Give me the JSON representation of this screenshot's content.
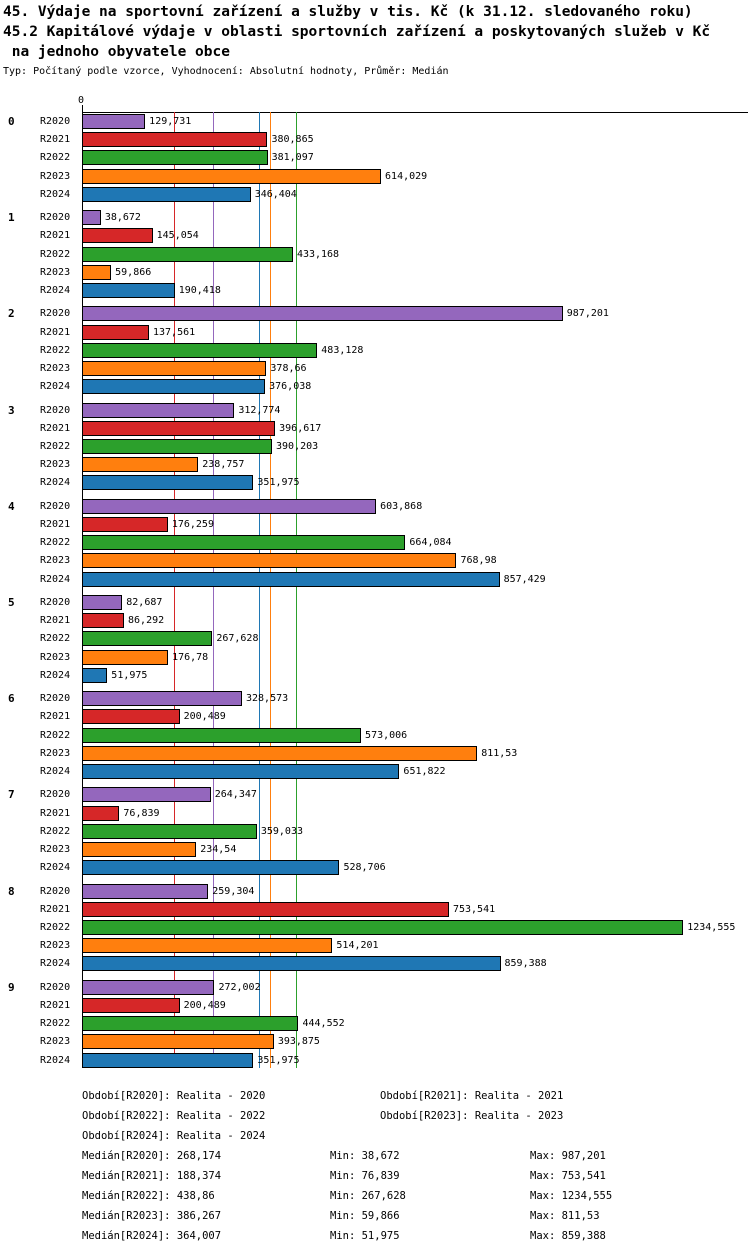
{
  "header": {
    "title_line1": "45. Výdaje na sportovní zařízení a služby v tis. Kč (k 31.12. sledovaného roku)",
    "title_line2": "45.2 Kapitálové výdaje v oblasti sportovních zařízení a poskytovaných služeb v Kč",
    "title_line3": " na jednoho obyvatele obce",
    "subtitle": "Typ: Počítaný podle vzorce, Vyhodnocení: Absolutní hodnoty, Průměr: Medián"
  },
  "chart_data": {
    "type": "bar",
    "orientation": "horizontal",
    "title": "45. Výdaje na sportovní zařízení a služby v tis. Kč (k 31.12. sledovaného roku)",
    "axis_zero_label": "0",
    "xlim": [
      0,
      1270
    ],
    "groups": [
      "0",
      "1",
      "2",
      "3",
      "4",
      "5",
      "6",
      "7",
      "8",
      "9"
    ],
    "series_labels": [
      "R2020",
      "R2021",
      "R2022",
      "R2023",
      "R2024"
    ],
    "series_colors": [
      "#9467bd",
      "#d62728",
      "#2ca02c",
      "#ff7f0e",
      "#1f77b4"
    ],
    "values": [
      [
        129.731,
        380.865,
        381.097,
        614.029,
        346.404
      ],
      [
        38.672,
        145.054,
        433.168,
        59.866,
        190.418
      ],
      [
        987.201,
        137.561,
        483.128,
        378.66,
        376.038
      ],
      [
        312.774,
        396.617,
        390.203,
        238.757,
        351.975
      ],
      [
        603.868,
        176.259,
        664.084,
        768.98,
        857.429
      ],
      [
        82.687,
        86.292,
        267.628,
        176.78,
        51.975
      ],
      [
        328.573,
        200.489,
        573.006,
        811.53,
        651.822
      ],
      [
        264.347,
        76.839,
        359.033,
        234.54,
        528.706
      ],
      [
        259.304,
        753.541,
        1234.555,
        514.201,
        859.388
      ],
      [
        272.002,
        200.489,
        444.552,
        393.875,
        351.975
      ]
    ],
    "value_labels": [
      [
        "129,731",
        "380,865",
        "381,097",
        "614,029",
        "346,404"
      ],
      [
        "38,672",
        "145,054",
        "433,168",
        "59,866",
        "190,418"
      ],
      [
        "987,201",
        "137,561",
        "483,128",
        "378,66",
        "376,038"
      ],
      [
        "312,774",
        "396,617",
        "390,203",
        "238,757",
        "351,975"
      ],
      [
        "603,868",
        "176,259",
        "664,084",
        "768,98",
        "857,429"
      ],
      [
        "82,687",
        "86,292",
        "267,628",
        "176,78",
        "51,975"
      ],
      [
        "328,573",
        "200,489",
        "573,006",
        "811,53",
        "651,822"
      ],
      [
        "264,347",
        "76,839",
        "359,033",
        "234,54",
        "528,706"
      ],
      [
        "259,304",
        "753,541",
        "1234,555",
        "514,201",
        "859,388"
      ],
      [
        "272,002",
        "200,489",
        "444,552",
        "393,875",
        "351,975"
      ]
    ],
    "median_values": [
      268.174,
      188.374,
      438.86,
      386.267,
      364.007
    ]
  },
  "legend": {
    "rows": [
      [
        "Období[R2020]: Realita - 2020",
        "Období[R2021]: Realita - 2021"
      ],
      [
        "Období[R2022]: Realita - 2022",
        "Období[R2023]: Realita - 2023"
      ],
      [
        "Období[R2024]: Realita - 2024"
      ]
    ]
  },
  "stats": {
    "rows": [
      [
        "Medián[R2020]: 268,174",
        "Min: 38,672",
        "Max: 987,201"
      ],
      [
        "Medián[R2021]: 188,374",
        "Min: 76,839",
        "Max: 753,541"
      ],
      [
        "Medián[R2022]: 438,86",
        "Min: 267,628",
        "Max: 1234,555"
      ],
      [
        "Medián[R2023]: 386,267",
        "Min: 59,866",
        "Max: 811,53"
      ],
      [
        "Medián[R2024]: 364,007",
        "Min: 51,975",
        "Max: 859,388"
      ]
    ]
  }
}
